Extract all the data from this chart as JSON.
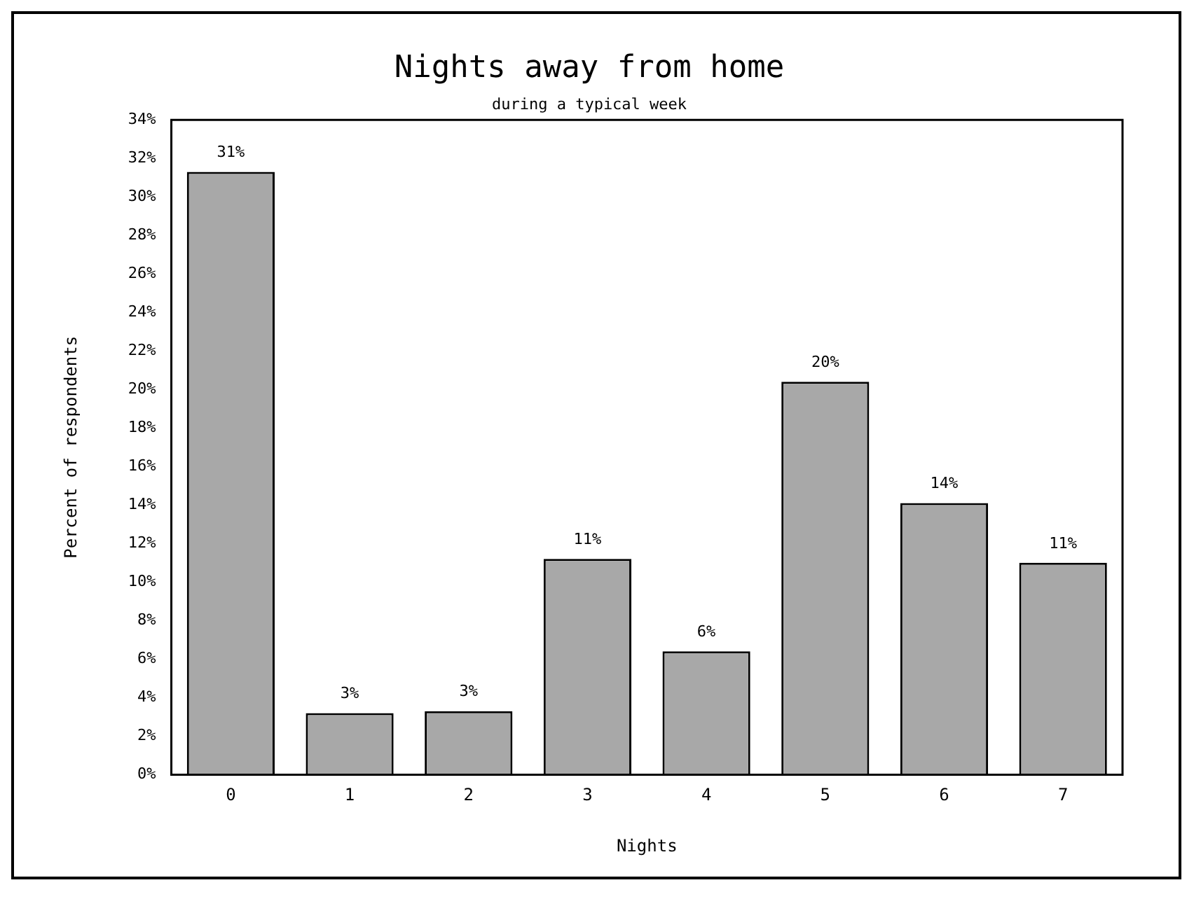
{
  "chart_data": {
    "type": "bar",
    "title": "Nights away from home",
    "subtitle": "during a typical week",
    "xlabel": "Nights",
    "ylabel": "Percent of respondents",
    "categories": [
      "0",
      "1",
      "2",
      "3",
      "4",
      "5",
      "6",
      "7"
    ],
    "values": [
      31.3,
      3.2,
      3.3,
      11.2,
      6.4,
      20.4,
      14.1,
      11.0
    ],
    "value_labels": [
      "31%",
      "3%",
      "3%",
      "11%",
      "6%",
      "20%",
      "14%",
      "11%"
    ],
    "color": "#a8a8a8",
    "ylim": [
      0,
      34
    ],
    "yticks": [
      {
        "value": 0,
        "label": "0%"
      },
      {
        "value": 2,
        "label": "2%"
      },
      {
        "value": 4,
        "label": "4%"
      },
      {
        "value": 6,
        "label": "6%"
      },
      {
        "value": 8,
        "label": "8%"
      },
      {
        "value": 10,
        "label": "10%"
      },
      {
        "value": 12,
        "label": "12%"
      },
      {
        "value": 14,
        "label": "14%"
      },
      {
        "value": 16,
        "label": "16%"
      },
      {
        "value": 18,
        "label": "18%"
      },
      {
        "value": 20,
        "label": "20%"
      },
      {
        "value": 22,
        "label": "22%"
      },
      {
        "value": 24,
        "label": "24%"
      },
      {
        "value": 26,
        "label": "26%"
      },
      {
        "value": 28,
        "label": "28%"
      },
      {
        "value": 30,
        "label": "30%"
      },
      {
        "value": 32,
        "label": "32%"
      },
      {
        "value": 34,
        "label": "34%"
      }
    ],
    "grid": false,
    "legend": false
  }
}
